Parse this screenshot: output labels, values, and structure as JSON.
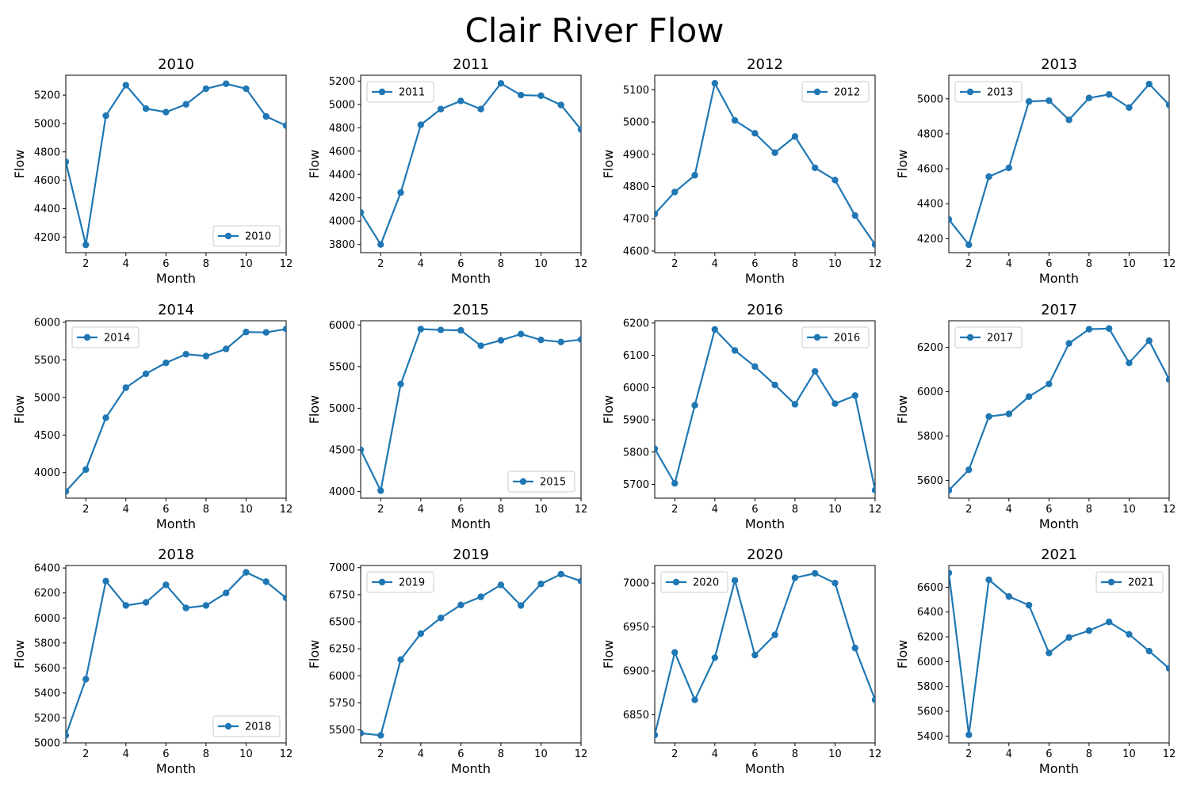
{
  "figure": {
    "title": "Clair River Flow"
  },
  "style": {
    "line_color": "#1f77b4",
    "axis_color": "#000000",
    "background": "#ffffff"
  },
  "chart_data": [
    {
      "type": "line",
      "title": "2010",
      "xlabel": "Month",
      "ylabel": "Flow",
      "xlim": [
        1,
        12
      ],
      "ylim": [
        4090,
        5340
      ],
      "xticks": [
        2,
        4,
        6,
        8,
        10,
        12
      ],
      "yticks": [
        4200,
        4400,
        4600,
        4800,
        5000,
        5200
      ],
      "legend_position": "lower right",
      "series": [
        {
          "name": "2010",
          "x": [
            1,
            2,
            3,
            4,
            5,
            6,
            7,
            8,
            9,
            10,
            11,
            12
          ],
          "y": [
            4730,
            4145,
            5055,
            5270,
            5105,
            5080,
            5135,
            5245,
            5280,
            5245,
            5050,
            4985
          ]
        }
      ]
    },
    {
      "type": "line",
      "title": "2011",
      "xlabel": "Month",
      "ylabel": "Flow",
      "xlim": [
        1,
        12
      ],
      "ylim": [
        3730,
        5250
      ],
      "xticks": [
        2,
        4,
        6,
        8,
        10,
        12
      ],
      "yticks": [
        3800,
        4000,
        4200,
        4400,
        4600,
        4800,
        5000,
        5200
      ],
      "legend_position": "upper left",
      "series": [
        {
          "name": "2011",
          "x": [
            1,
            2,
            3,
            4,
            5,
            6,
            7,
            8,
            9,
            10,
            11,
            12
          ],
          "y": [
            4075,
            3800,
            4245,
            4825,
            4960,
            5030,
            4960,
            5180,
            5080,
            5075,
            4995,
            4785
          ]
        }
      ]
    },
    {
      "type": "line",
      "title": "2012",
      "xlabel": "Month",
      "ylabel": "Flow",
      "xlim": [
        1,
        12
      ],
      "ylim": [
        4595,
        5145
      ],
      "xticks": [
        2,
        4,
        6,
        8,
        10,
        12
      ],
      "yticks": [
        4600,
        4700,
        4800,
        4900,
        5000,
        5100
      ],
      "legend_position": "upper right",
      "series": [
        {
          "name": "2012",
          "x": [
            1,
            2,
            3,
            4,
            5,
            6,
            7,
            8,
            9,
            10,
            11,
            12
          ],
          "y": [
            4715,
            4783,
            4835,
            5120,
            5005,
            4965,
            4905,
            4955,
            4858,
            4820,
            4710,
            4620
          ]
        }
      ]
    },
    {
      "type": "line",
      "title": "2013",
      "xlabel": "Month",
      "ylabel": "Flow",
      "xlim": [
        1,
        12
      ],
      "ylim": [
        4120,
        5135
      ],
      "xticks": [
        2,
        4,
        6,
        8,
        10,
        12
      ],
      "yticks": [
        4200,
        4400,
        4600,
        4800,
        5000
      ],
      "legend_position": "upper left",
      "series": [
        {
          "name": "2013",
          "x": [
            1,
            2,
            3,
            4,
            5,
            6,
            7,
            8,
            9,
            10,
            11,
            12
          ],
          "y": [
            4310,
            4165,
            4555,
            4605,
            4985,
            4990,
            4880,
            5005,
            5025,
            4950,
            5085,
            4965
          ]
        }
      ]
    },
    {
      "type": "line",
      "title": "2014",
      "xlabel": "Month",
      "ylabel": "Flow",
      "xlim": [
        1,
        12
      ],
      "ylim": [
        3660,
        6020
      ],
      "xticks": [
        2,
        4,
        6,
        8,
        10,
        12
      ],
      "yticks": [
        4000,
        4500,
        5000,
        5500,
        6000
      ],
      "legend_position": "upper left",
      "series": [
        {
          "name": "2014",
          "x": [
            1,
            2,
            3,
            4,
            5,
            6,
            7,
            8,
            9,
            10,
            11,
            12
          ],
          "y": [
            3750,
            4040,
            4730,
            5130,
            5315,
            5460,
            5575,
            5550,
            5645,
            5870,
            5865,
            5910
          ]
        }
      ]
    },
    {
      "type": "line",
      "title": "2015",
      "xlabel": "Month",
      "ylabel": "Flow",
      "xlim": [
        1,
        12
      ],
      "ylim": [
        3920,
        6050
      ],
      "xticks": [
        2,
        4,
        6,
        8,
        10,
        12
      ],
      "yticks": [
        4000,
        4500,
        5000,
        5500,
        6000
      ],
      "legend_position": "lower right",
      "series": [
        {
          "name": "2015",
          "x": [
            1,
            2,
            3,
            4,
            5,
            6,
            7,
            8,
            9,
            10,
            11,
            12
          ],
          "y": [
            4500,
            4010,
            5290,
            5950,
            5940,
            5935,
            5750,
            5815,
            5890,
            5820,
            5795,
            5825
          ]
        }
      ]
    },
    {
      "type": "line",
      "title": "2016",
      "xlabel": "Month",
      "ylabel": "Flow",
      "xlim": [
        1,
        12
      ],
      "ylim": [
        5657,
        6207
      ],
      "xticks": [
        2,
        4,
        6,
        8,
        10,
        12
      ],
      "yticks": [
        5700,
        5800,
        5900,
        6000,
        6100,
        6200
      ],
      "legend_position": "upper right",
      "series": [
        {
          "name": "2016",
          "x": [
            1,
            2,
            3,
            4,
            5,
            6,
            7,
            8,
            9,
            10,
            11,
            12
          ],
          "y": [
            5810,
            5703,
            5945,
            6180,
            6115,
            6065,
            6008,
            5948,
            6050,
            5950,
            5975,
            5682
          ]
        }
      ]
    },
    {
      "type": "line",
      "title": "2017",
      "xlabel": "Month",
      "ylabel": "Flow",
      "xlim": [
        1,
        12
      ],
      "ylim": [
        5520,
        6320
      ],
      "xticks": [
        2,
        4,
        6,
        8,
        10,
        12
      ],
      "yticks": [
        5600,
        5800,
        6000,
        6200
      ],
      "legend_position": "upper left",
      "series": [
        {
          "name": "2017",
          "x": [
            1,
            2,
            3,
            4,
            5,
            6,
            7,
            8,
            9,
            10,
            11,
            12
          ],
          "y": [
            5555,
            5648,
            5888,
            5900,
            5978,
            6035,
            6218,
            6282,
            6285,
            6130,
            6230,
            6055
          ]
        }
      ]
    },
    {
      "type": "line",
      "title": "2018",
      "xlabel": "Month",
      "ylabel": "Flow",
      "xlim": [
        1,
        12
      ],
      "ylim": [
        5000,
        6420
      ],
      "xticks": [
        2,
        4,
        6,
        8,
        10,
        12
      ],
      "yticks": [
        5000,
        5200,
        5400,
        5600,
        5800,
        6000,
        6200,
        6400
      ],
      "legend_position": "lower right",
      "series": [
        {
          "name": "2018",
          "x": [
            1,
            2,
            3,
            4,
            5,
            6,
            7,
            8,
            9,
            10,
            11,
            12
          ],
          "y": [
            5060,
            5510,
            6295,
            6100,
            6125,
            6265,
            6080,
            6100,
            6200,
            6365,
            6290,
            6160
          ]
        }
      ]
    },
    {
      "type": "line",
      "title": "2019",
      "xlabel": "Month",
      "ylabel": "Flow",
      "xlim": [
        1,
        12
      ],
      "ylim": [
        5380,
        7020
      ],
      "xticks": [
        2,
        4,
        6,
        8,
        10,
        12
      ],
      "yticks": [
        5500,
        5750,
        6000,
        6250,
        6500,
        6750,
        7000
      ],
      "legend_position": "upper left",
      "series": [
        {
          "name": "2019",
          "x": [
            1,
            2,
            3,
            4,
            5,
            6,
            7,
            8,
            9,
            10,
            11,
            12
          ],
          "y": [
            5470,
            5450,
            6150,
            6390,
            6535,
            6655,
            6730,
            6840,
            6650,
            6850,
            6940,
            6875
          ]
        }
      ]
    },
    {
      "type": "line",
      "title": "2020",
      "xlabel": "Month",
      "ylabel": "Flow",
      "xlim": [
        1,
        12
      ],
      "ylim": [
        6818,
        7020
      ],
      "xticks": [
        2,
        4,
        6,
        8,
        10,
        12
      ],
      "yticks": [
        6850,
        6900,
        6950,
        7000
      ],
      "legend_position": "upper left",
      "series": [
        {
          "name": "2020",
          "x": [
            1,
            2,
            3,
            4,
            5,
            6,
            7,
            8,
            9,
            10,
            11,
            12
          ],
          "y": [
            6827,
            6921,
            6867,
            6915,
            7003,
            6918,
            6941,
            7006,
            7011,
            7000,
            6926,
            6867
          ]
        }
      ]
    },
    {
      "type": "line",
      "title": "2021",
      "xlabel": "Month",
      "ylabel": "Flow",
      "xlim": [
        1,
        12
      ],
      "ylim": [
        5345,
        6775
      ],
      "xticks": [
        2,
        4,
        6,
        8,
        10,
        12
      ],
      "yticks": [
        5400,
        5600,
        5800,
        6000,
        6200,
        6400,
        6600
      ],
      "legend_position": "upper right",
      "series": [
        {
          "name": "2021",
          "x": [
            1,
            2,
            3,
            4,
            5,
            6,
            7,
            8,
            9,
            10,
            11,
            12
          ],
          "y": [
            6715,
            5410,
            6660,
            6525,
            6455,
            6070,
            6195,
            6250,
            6320,
            6220,
            6085,
            5945
          ]
        }
      ]
    }
  ]
}
